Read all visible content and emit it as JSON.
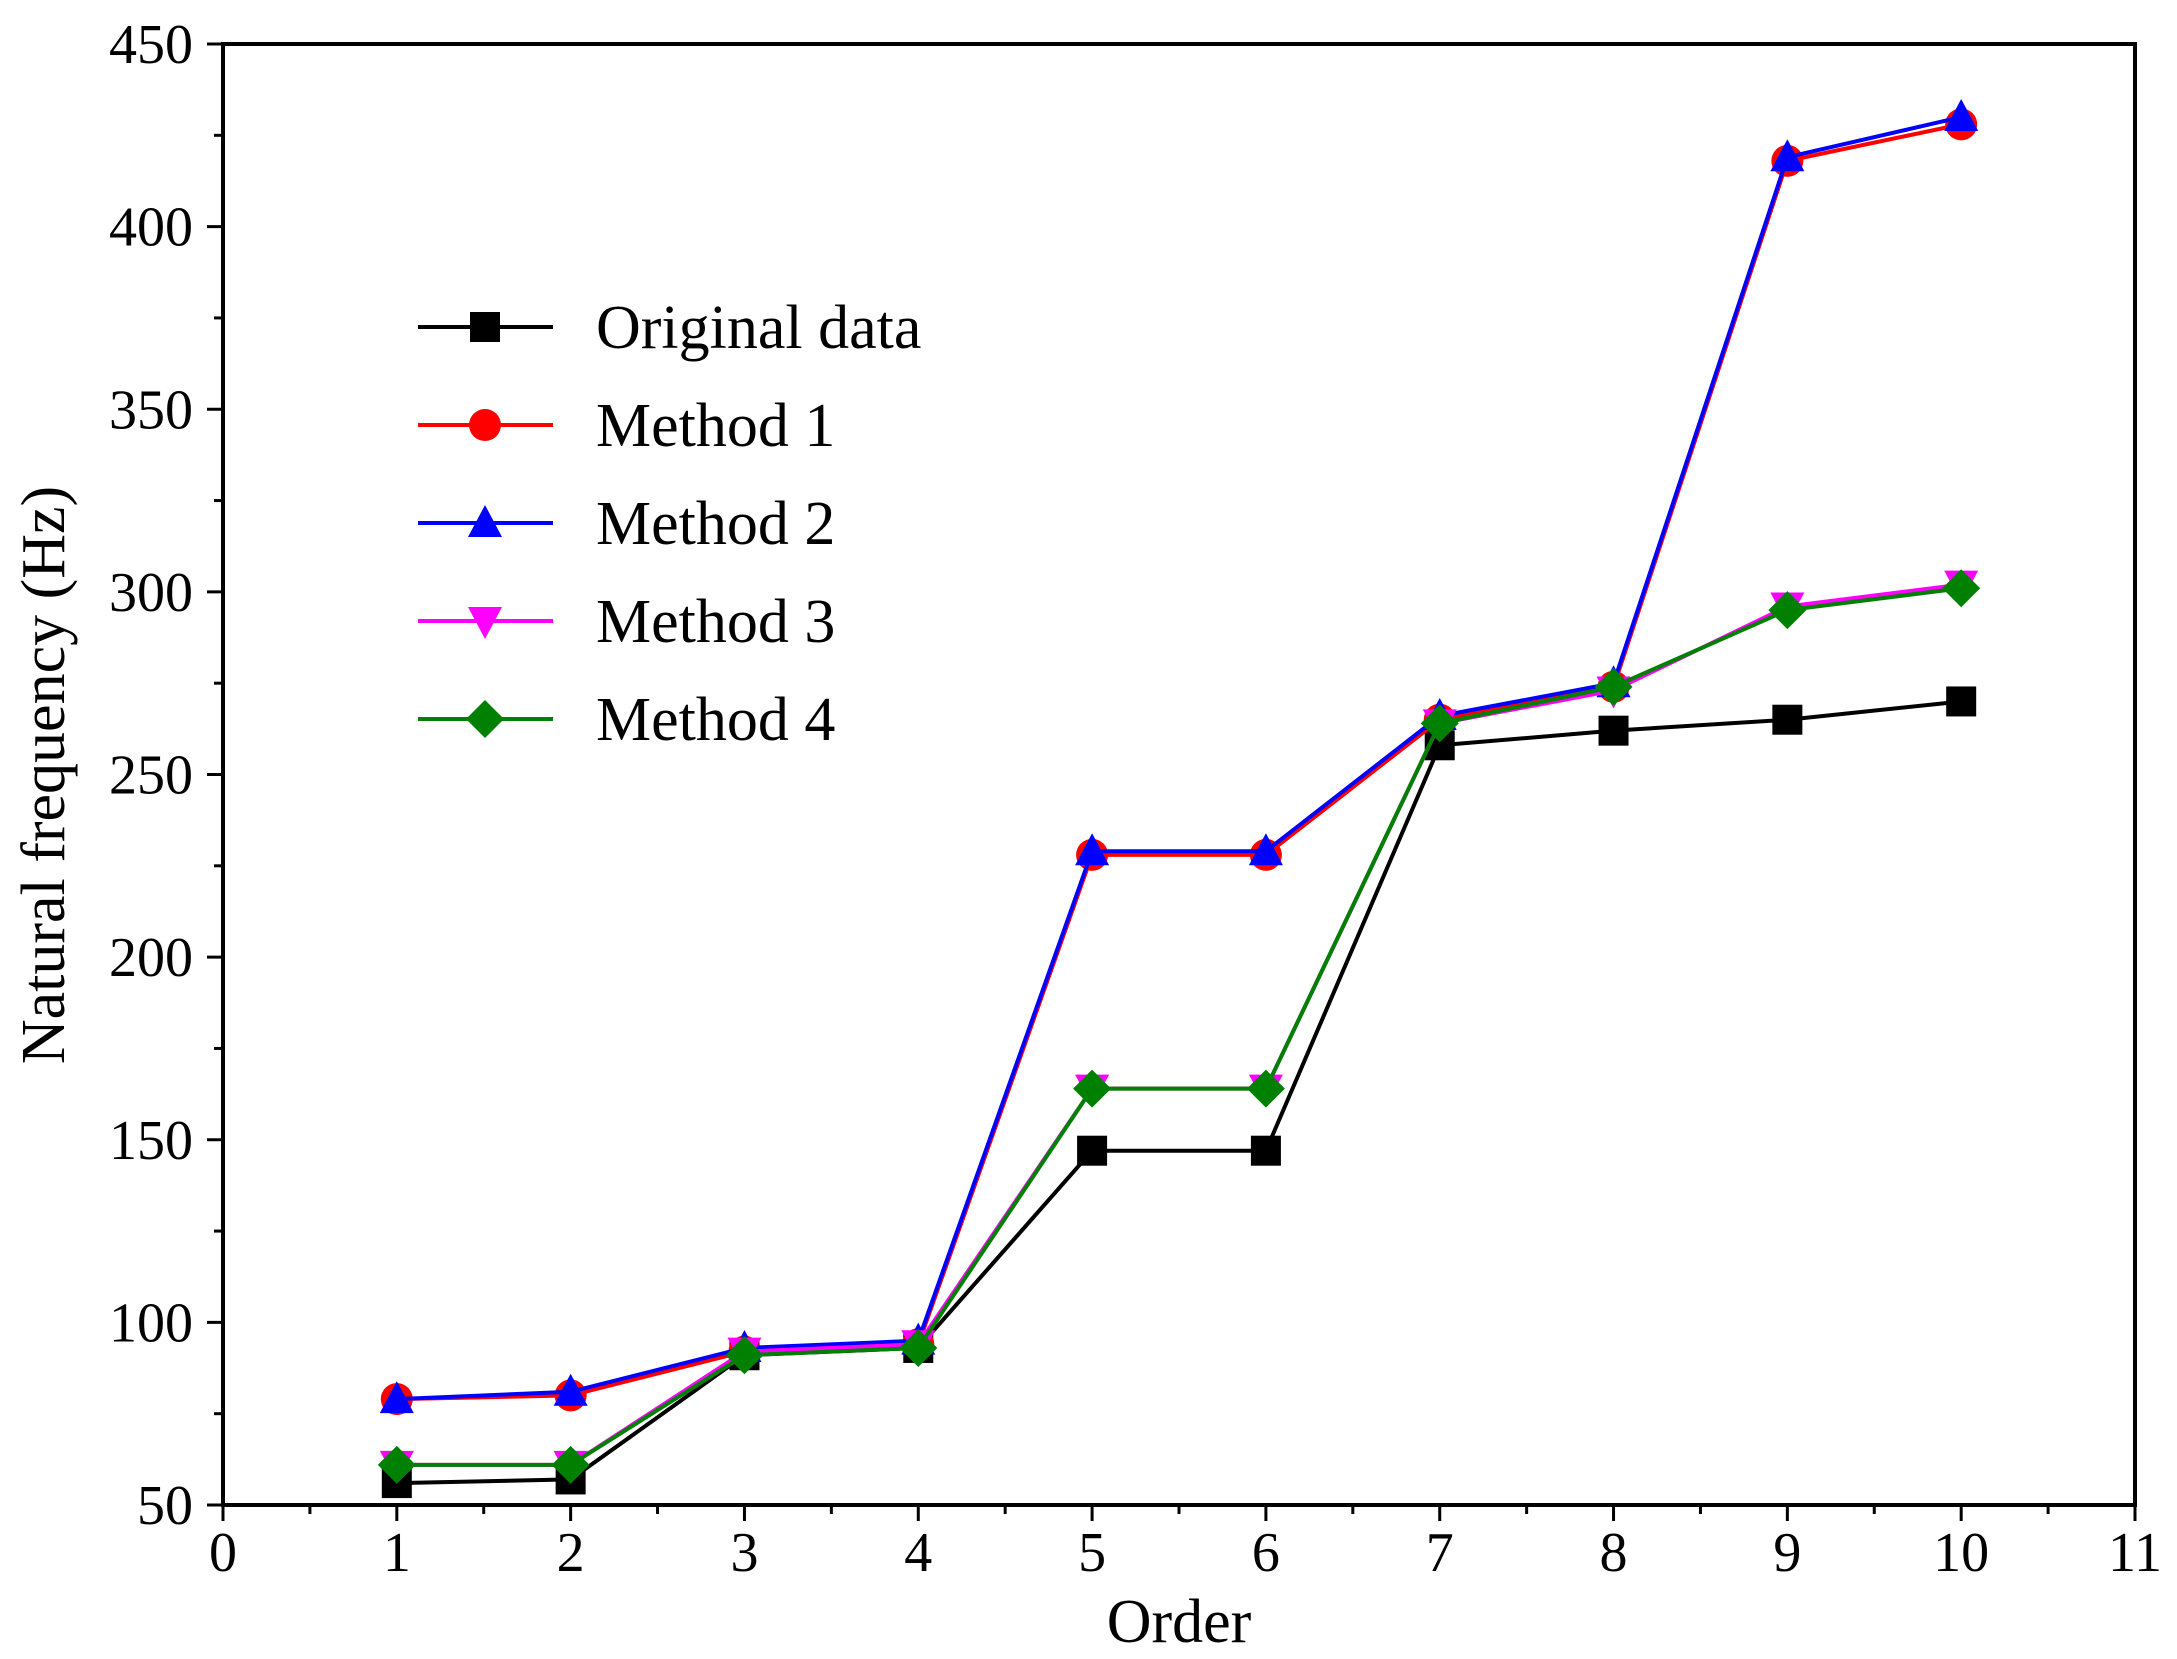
{
  "chart_data": {
    "type": "line",
    "title": "",
    "xlabel": "Order",
    "ylabel": "Natural frequency (Hz)",
    "xlim": [
      0,
      11
    ],
    "ylim": [
      50,
      450
    ],
    "xticks": [
      0,
      1,
      2,
      3,
      4,
      5,
      6,
      7,
      8,
      9,
      10,
      11
    ],
    "yticks": [
      50,
      100,
      150,
      200,
      250,
      300,
      350,
      400,
      450
    ],
    "x": [
      1,
      2,
      3,
      4,
      5,
      6,
      7,
      8,
      9,
      10
    ],
    "legend_position": "upper-left",
    "grid": false,
    "series": [
      {
        "name": "Original data",
        "color": "#000000",
        "marker": "square",
        "values": [
          56,
          57,
          91,
          93,
          147,
          147,
          258,
          262,
          265,
          270
        ]
      },
      {
        "name": "Method 1",
        "color": "#ff0000",
        "marker": "circle",
        "values": [
          79,
          80,
          92,
          94,
          228,
          228,
          265,
          274,
          418,
          428
        ]
      },
      {
        "name": "Method 2",
        "color": "#0000ff",
        "marker": "triangle-up",
        "values": [
          79,
          81,
          93,
          95,
          229,
          229,
          266,
          275,
          419,
          430
        ]
      },
      {
        "name": "Method 3",
        "color": "#ff00ff",
        "marker": "triangle-down",
        "values": [
          61,
          61,
          92,
          94,
          164,
          164,
          264,
          273,
          296,
          302
        ]
      },
      {
        "name": "Method 4",
        "color": "#008000",
        "marker": "diamond",
        "values": [
          61,
          61,
          91,
          93,
          164,
          164,
          264,
          274,
          295,
          301
        ]
      }
    ]
  }
}
